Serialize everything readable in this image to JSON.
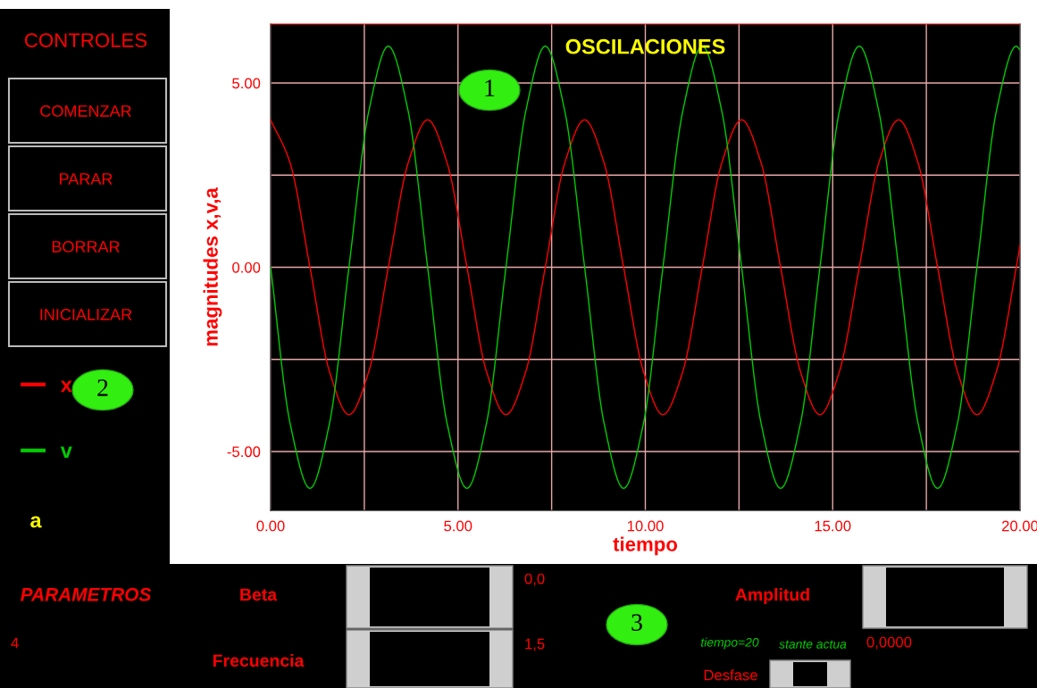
{
  "chart_data": {
    "type": "line",
    "title": "OSCILACIONES",
    "xlabel": "tiempo",
    "ylabel": "magnitudes x,v,a",
    "x": [
      0,
      0.52,
      1.05,
      1.57,
      2.09,
      2.62,
      3.14,
      3.67,
      4.19,
      4.71,
      5.24,
      5.76,
      6.28,
      6.81,
      7.33,
      7.85,
      8.38,
      8.9,
      9.42,
      9.95,
      10.47,
      11.0,
      11.52,
      12.04,
      12.57,
      13.09,
      13.61,
      14.14,
      14.66,
      15.18,
      15.71,
      16.23,
      16.76,
      17.28,
      17.8,
      18.33,
      18.85,
      19.37,
      19.9,
      20.0
    ],
    "series": [
      {
        "name": "x",
        "color": "#ff0000",
        "values": [
          4,
          2.83,
          0,
          -2.83,
          -4,
          -2.83,
          0,
          2.83,
          4,
          2.83,
          0,
          -2.83,
          -4,
          -2.83,
          0,
          2.83,
          4,
          2.83,
          0,
          -2.83,
          -4,
          -2.83,
          0,
          2.83,
          4,
          2.83,
          0,
          -2.83,
          -4,
          -2.83,
          0,
          2.83,
          4,
          2.83,
          0,
          -2.83,
          -4,
          -2.83,
          0,
          0.6
        ]
      },
      {
        "name": "v",
        "color": "#00cc00",
        "values": [
          0,
          -4.24,
          -6,
          -4.24,
          0,
          4.24,
          6,
          4.24,
          0,
          -4.24,
          -6,
          -4.24,
          0,
          4.24,
          6,
          4.24,
          0,
          -4.24,
          -6,
          -4.24,
          0,
          4.24,
          6,
          4.24,
          0,
          -4.24,
          -6,
          -4.24,
          0,
          4.24,
          6,
          4.24,
          0,
          -4.24,
          -6,
          -4.24,
          0,
          4.24,
          6,
          5.9
        ]
      }
    ],
    "xlim": [
      0,
      20
    ],
    "xticks": [
      {
        "value": 0,
        "label": "0.00"
      },
      {
        "value": 2.5,
        "label": null
      },
      {
        "value": 5,
        "label": "5.00"
      },
      {
        "value": 7.5,
        "label": null
      },
      {
        "value": 10,
        "label": "10.00"
      },
      {
        "value": 12.5,
        "label": null
      },
      {
        "value": 15,
        "label": "15.00"
      },
      {
        "value": 17.5,
        "label": null
      },
      {
        "value": 20,
        "label": "20.00"
      }
    ],
    "ylim": [
      -6.6,
      6.6
    ],
    "yticks": [
      {
        "value": -5,
        "label": "-5.00"
      },
      {
        "value": -2.5,
        "label": null
      },
      {
        "value": 0,
        "label": "0.00"
      },
      {
        "value": 2.5,
        "label": null
      },
      {
        "value": 5,
        "label": "5.00"
      }
    ],
    "grid": true,
    "legend": "left",
    "line_style": "solid",
    "marker": "none",
    "annotations": [
      "CONTROLES",
      "COMENZAR",
      "PARAR",
      "BORRAR",
      "INICIALIZAR",
      "a",
      "PARAMETROS",
      "Beta",
      "Amplitud",
      "4",
      "Frecuencia",
      "0,0",
      "1,5",
      "tiempo=20",
      "stante actua",
      "Desfase",
      "0,0000",
      "1",
      "2",
      "3"
    ]
  }
}
